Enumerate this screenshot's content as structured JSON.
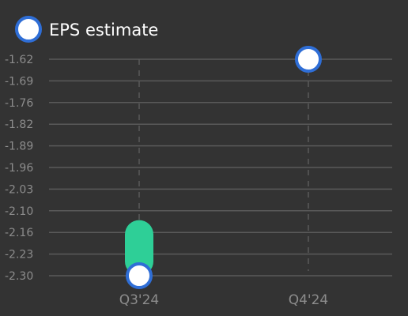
{
  "chart_data": {
    "type": "scatter",
    "legend": {
      "label": "EPS estimate",
      "position": "top-left"
    },
    "categories": [
      "Q3'24",
      "Q4'24"
    ],
    "y_ticks": [
      "-1.62",
      "-1.69",
      "-1.76",
      "-1.82",
      "-1.89",
      "-1.96",
      "-2.03",
      "-2.10",
      "-2.16",
      "-2.23",
      "-2.30"
    ],
    "ylim": [
      -2.3,
      -1.62
    ],
    "grid": true,
    "series": [
      {
        "name": "EPS estimate",
        "points": [
          {
            "category": "Q3'24",
            "y": -2.3
          },
          {
            "category": "Q4'24",
            "y": -1.62
          }
        ]
      }
    ],
    "ranges": [
      {
        "category": "Q3'24",
        "low": -2.3,
        "high": -2.17
      }
    ]
  },
  "colors": {
    "background": "#333333",
    "marker_fill": "#ffffff",
    "marker_stroke": "#2f6ed6",
    "range_bar": "#2ecf97",
    "grid": "#5a5a5a",
    "label": "#8c8c8c",
    "legend_text": "#ffffff"
  }
}
